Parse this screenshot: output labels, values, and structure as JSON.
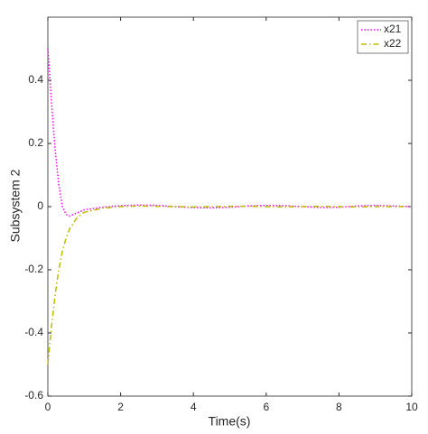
{
  "chart_data": {
    "type": "line",
    "x_label": "Time(s)",
    "y_label": "Subsystem 2",
    "x": [
      0,
      0.1,
      0.2,
      0.3,
      0.4,
      0.5,
      0.6,
      0.8,
      1,
      1.5,
      2,
      2.5,
      3,
      3.5,
      4,
      4.5,
      5,
      5.5,
      6,
      6.5,
      7,
      7.5,
      8,
      8.5,
      9,
      9.5,
      10
    ],
    "series": [
      {
        "name": "x21",
        "color": "#ff00ff",
        "dash": "dotted",
        "values": [
          0.5,
          0.33,
          0.18,
          0.07,
          0.0,
          -0.025,
          -0.03,
          -0.02,
          -0.01,
          -0.002,
          0.003,
          0.005,
          0.004,
          0.0,
          -0.003,
          -0.004,
          -0.002,
          0.002,
          0.004,
          0.003,
          0.0,
          -0.003,
          -0.002,
          0.002,
          0.004,
          0.002,
          0.0
        ]
      },
      {
        "name": "x22",
        "color": "#bdbd00",
        "dash": "dashdot",
        "values": [
          -0.5,
          -0.38,
          -0.28,
          -0.2,
          -0.14,
          -0.1,
          -0.07,
          -0.035,
          -0.018,
          -0.005,
          0.0,
          0.002,
          0.001,
          0.0,
          -0.001,
          0.0,
          0.001,
          0.001,
          0.0,
          -0.001,
          0.0,
          0.001,
          0.0,
          -0.001,
          0.0,
          0.0,
          0.0
        ]
      }
    ],
    "xlim": [
      0,
      10
    ],
    "xticks": [
      0,
      2,
      4,
      6,
      8,
      10
    ],
    "ylim": [
      -0.6,
      0.6
    ],
    "yticks": [
      -0.6,
      -0.4,
      -0.2,
      0,
      0.2,
      0.4
    ],
    "grid": false,
    "legend": "northeast"
  }
}
